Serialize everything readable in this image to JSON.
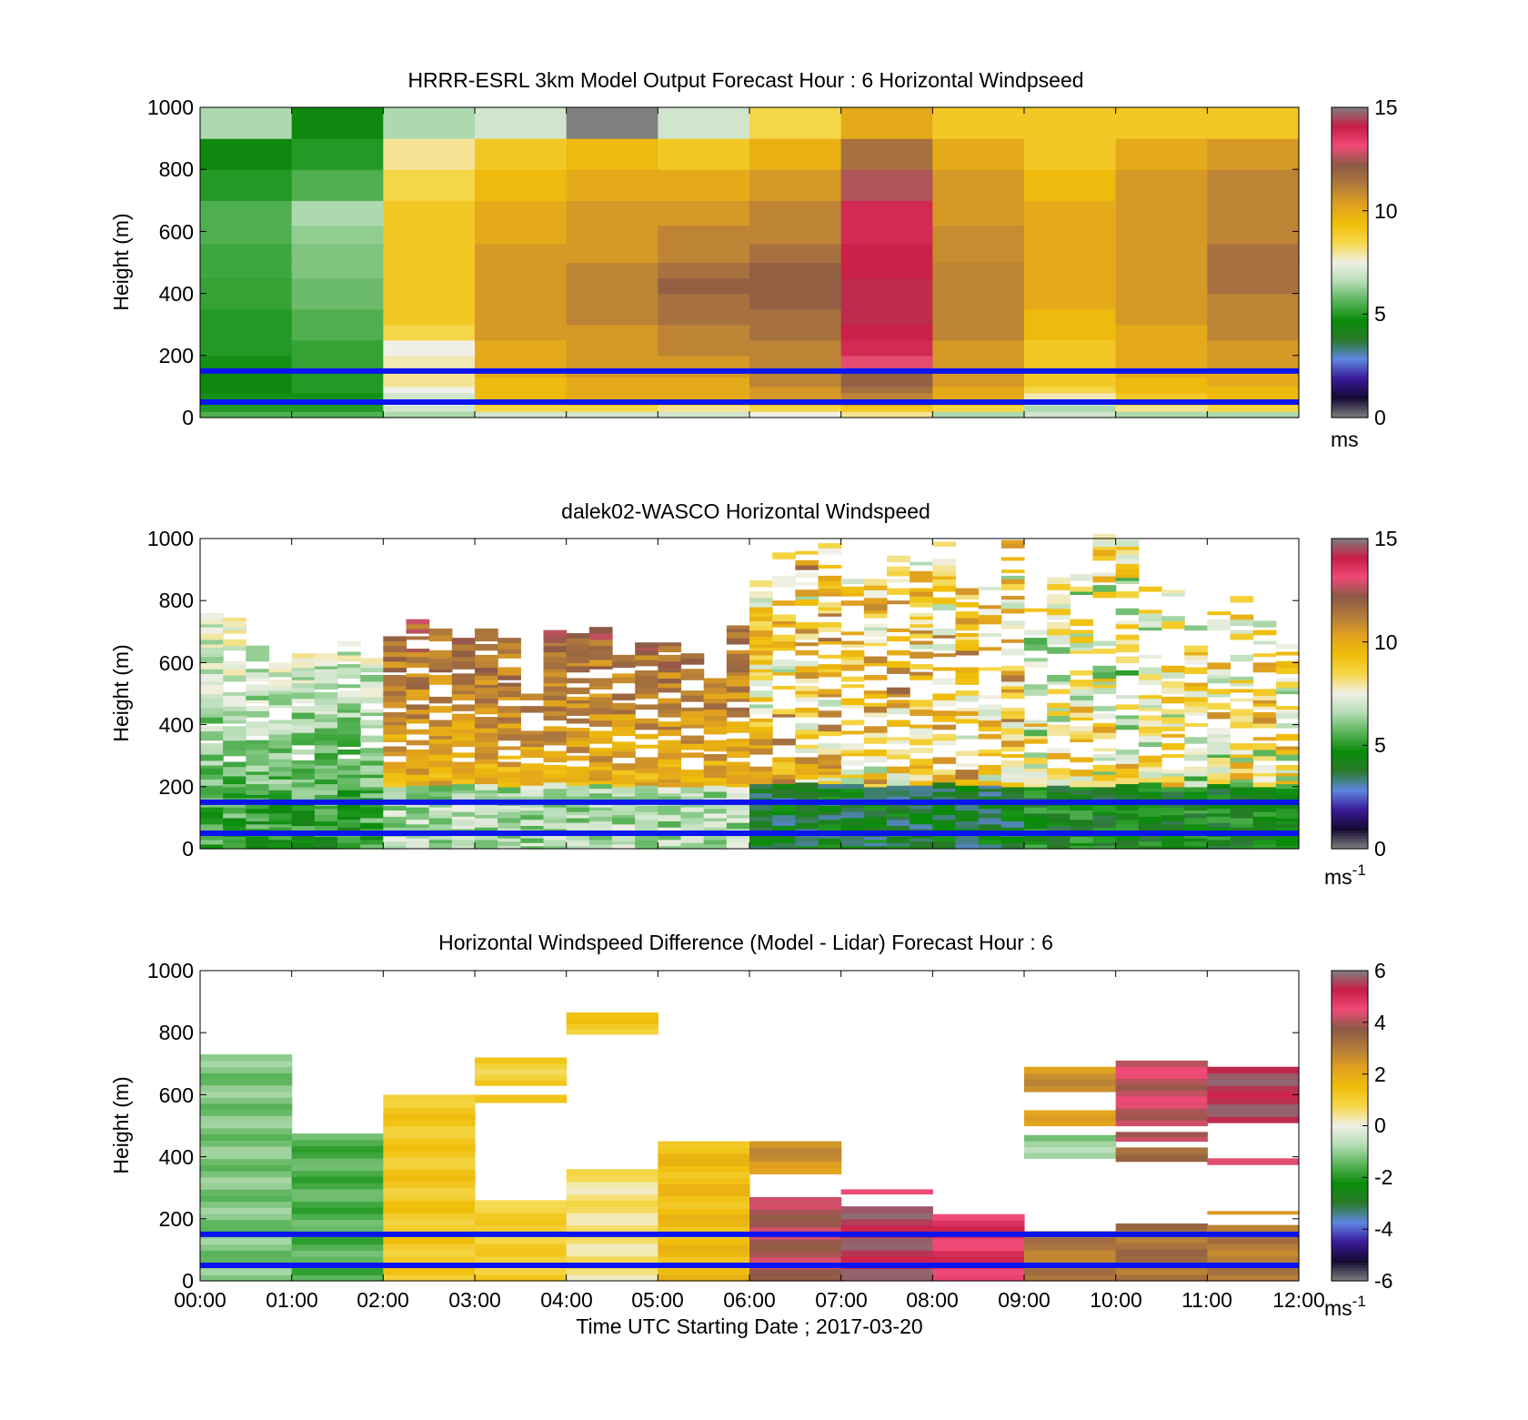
{
  "colors": {
    "background": "#ffffff",
    "reference_line": "#0a14f0",
    "speed_colormap": [
      "#7f7f7f",
      "#140a32",
      "#3a1a9a",
      "#5e86e0",
      "#2a7a2a",
      "#0a8c0a",
      "#5ab45a",
      "#b4dcb4",
      "#f0f0e6",
      "#f5d84a",
      "#f0be0a",
      "#e0a020",
      "#b07a3c",
      "#8c5a46",
      "#f04a78",
      "#c81e46",
      "#7f7f7f"
    ],
    "diff_colormap": [
      "#7f7f7f",
      "#140a32",
      "#3a1a9a",
      "#5e86e0",
      "#2a7a2a",
      "#0a8c0a",
      "#5ab45a",
      "#b4dcb4",
      "#f0f0e6",
      "#f5d84a",
      "#f0be0a",
      "#e0a020",
      "#b07a3c",
      "#8c5a46",
      "#f04a78",
      "#c81e46",
      "#7f7f7f"
    ]
  },
  "chart_data": [
    {
      "type": "heatmap",
      "title": "HRRR-ESRL 3km Model Output   Forecast Hour : 6 Horizontal Windpseed",
      "xlabel": "",
      "ylabel": "Height (m)",
      "xlim": [
        0,
        12
      ],
      "ylim": [
        0,
        1000
      ],
      "yticks": [
        "0",
        "200",
        "400",
        "600",
        "800",
        "1000"
      ],
      "colorbar": {
        "min": 0,
        "max": 15,
        "ticks": [
          "0",
          "5",
          "10",
          "15"
        ],
        "unit_label": "ms",
        "unit_exponent": ""
      },
      "reference_lines_m": [
        50,
        150
      ],
      "height_bins_m": [
        0,
        20,
        40,
        60,
        80,
        100,
        130,
        160,
        200,
        250,
        300,
        350,
        400,
        450,
        500,
        560,
        620,
        700,
        800,
        900,
        1000
      ],
      "values": [
        [
          5.5,
          5.5,
          6.5,
          7.0,
          7.0,
          7.0,
          7.5,
          8.0,
          6.5,
          7.0,
          6.5,
          6.5
        ],
        [
          5.0,
          5.0,
          7.0,
          8.5,
          8.5,
          8.0,
          8.5,
          9.0,
          8.5,
          6.5,
          8.0,
          8.5
        ],
        [
          4.8,
          4.8,
          7.5,
          9.0,
          9.5,
          9.0,
          10.0,
          10.5,
          9.5,
          7.0,
          8.5,
          9.0
        ],
        [
          4.8,
          4.8,
          7.0,
          9.5,
          10.0,
          10.0,
          10.5,
          11.0,
          10.0,
          7.8,
          9.0,
          9.5
        ],
        [
          4.5,
          5.0,
          7.5,
          9.5,
          10.0,
          10.0,
          10.5,
          11.5,
          10.0,
          8.5,
          9.5,
          9.5
        ],
        [
          4.5,
          5.0,
          8.0,
          9.5,
          10.0,
          10.0,
          11.0,
          12.0,
          10.5,
          9.0,
          9.5,
          10.0
        ],
        [
          4.5,
          5.0,
          8.0,
          10.0,
          10.5,
          10.5,
          11.0,
          12.0,
          10.5,
          9.0,
          10.0,
          10.0
        ],
        [
          4.8,
          5.2,
          7.8,
          10.0,
          10.5,
          10.5,
          11.0,
          13.0,
          10.5,
          9.0,
          10.0,
          10.5
        ],
        [
          5.0,
          5.2,
          7.5,
          10.0,
          10.5,
          11.0,
          11.0,
          13.8,
          10.5,
          9.0,
          10.0,
          10.5
        ],
        [
          5.0,
          5.5,
          8.5,
          10.5,
          10.5,
          11.0,
          11.5,
          14.0,
          11.0,
          9.5,
          10.0,
          11.0
        ],
        [
          5.0,
          5.5,
          9.0,
          10.5,
          11.0,
          11.5,
          11.5,
          14.2,
          11.0,
          9.5,
          10.5,
          11.0
        ],
        [
          5.2,
          5.8,
          9.0,
          10.5,
          11.0,
          11.5,
          12.0,
          14.2,
          11.0,
          10.0,
          10.5,
          11.0
        ],
        [
          5.2,
          5.8,
          9.0,
          10.5,
          11.0,
          12.0,
          12.0,
          14.2,
          11.0,
          10.0,
          10.5,
          11.5
        ],
        [
          5.3,
          6.0,
          9.0,
          10.5,
          11.0,
          11.5,
          12.0,
          14.0,
          11.0,
          10.0,
          10.5,
          11.5
        ],
        [
          5.3,
          6.0,
          9.0,
          10.5,
          10.5,
          11.0,
          11.5,
          14.0,
          10.8,
          10.0,
          10.5,
          11.5
        ],
        [
          5.5,
          6.2,
          9.0,
          10.0,
          10.5,
          11.0,
          11.0,
          13.8,
          10.8,
          10.0,
          10.5,
          11.0
        ],
        [
          5.5,
          6.5,
          9.0,
          10.0,
          10.5,
          10.5,
          11.0,
          13.8,
          10.5,
          10.0,
          10.5,
          11.0
        ],
        [
          5.0,
          5.5,
          8.5,
          9.5,
          10.0,
          10.0,
          10.5,
          12.5,
          10.5,
          9.5,
          10.5,
          11.0
        ],
        [
          4.5,
          5.0,
          8.0,
          9.0,
          9.5,
          9.0,
          9.8,
          11.5,
          10.0,
          9.0,
          10.0,
          10.5
        ],
        [
          6.5,
          4.5,
          6.5,
          7.0,
          0.0,
          7.0,
          8.5,
          10.0,
          9.0,
          9.0,
          9.0,
          9.0
        ]
      ]
    },
    {
      "type": "heatmap",
      "title": "dalek02-WASCO  Horizontal Windspeed",
      "xlabel": "",
      "ylabel": "Height (m)",
      "xlim": [
        0,
        12
      ],
      "ylim": [
        0,
        1000
      ],
      "yticks": [
        "0",
        "200",
        "400",
        "600",
        "800",
        "1000"
      ],
      "colorbar": {
        "min": 0,
        "max": 15,
        "ticks": [
          "0",
          "5",
          "10",
          "15"
        ],
        "unit_label": "ms",
        "unit_exponent": "-1"
      },
      "reference_lines_m": [
        50,
        150
      ],
      "segment_tops_m": [
        760,
        740,
        640,
        620,
        620,
        620,
        660,
        610,
        690,
        730,
        720,
        680,
        700,
        680,
        500,
        690,
        710,
        720,
        620,
        660,
        660,
        650,
        560,
        720,
        880,
        960,
        1000,
        1000,
        880,
        860,
        940,
        920,
        980,
        840,
        860,
        990,
        780,
        860,
        880,
        1000,
        980,
        860,
        880,
        720,
        760,
        800,
        720,
        680
      ]
    },
    {
      "type": "heatmap",
      "title": "Horizontal Windspeed Difference (Model - Lidar) Forecast Hour : 6",
      "xlabel": "Time UTC  Starting Date ; 2017-03-20",
      "ylabel": "Height (m)",
      "xlim": [
        0,
        12
      ],
      "ylim": [
        0,
        1000
      ],
      "xticks": [
        "00:00",
        "01:00",
        "02:00",
        "03:00",
        "04:00",
        "05:00",
        "06:00",
        "07:00",
        "08:00",
        "09:00",
        "10:00",
        "11:00",
        "12:00"
      ],
      "yticks": [
        "0",
        "200",
        "400",
        "600",
        "800",
        "1000"
      ],
      "colorbar": {
        "min": -6,
        "max": 6,
        "ticks": [
          "-6",
          "-4",
          "-2",
          "0",
          "2",
          "4",
          "6"
        ],
        "unit_label": "ms",
        "unit_exponent": "-1"
      },
      "reference_lines_m": [
        50,
        150
      ],
      "patches": [
        {
          "x0": 0,
          "x1": 1,
          "y0": 0,
          "y1": 730,
          "value": -1.2
        },
        {
          "x0": 1,
          "x1": 2,
          "y0": 0,
          "y1": 475,
          "value": -1.6
        },
        {
          "x0": 2,
          "x1": 3,
          "y0": 0,
          "y1": 600,
          "value": 1.2
        },
        {
          "x0": 3,
          "x1": 4,
          "y0": 0,
          "y1": 260,
          "value": 1.0
        },
        {
          "x0": 3,
          "x1": 4,
          "y0": 630,
          "y1": 720,
          "value": 1.0
        },
        {
          "x0": 3,
          "x1": 4,
          "y0": 575,
          "y1": 600,
          "value": 1.0
        },
        {
          "x0": 4,
          "x1": 5,
          "y0": 0,
          "y1": 360,
          "value": 0.5
        },
        {
          "x0": 4,
          "x1": 5,
          "y0": 795,
          "y1": 865,
          "value": 1.2
        },
        {
          "x0": 5,
          "x1": 6,
          "y0": 0,
          "y1": 450,
          "value": 1.5
        },
        {
          "x0": 6,
          "x1": 7,
          "y0": 0,
          "y1": 270,
          "value": 4.0
        },
        {
          "x0": 6,
          "x1": 7,
          "y0": 345,
          "y1": 450,
          "value": 2.5
        },
        {
          "x0": 7,
          "x1": 8,
          "y0": 0,
          "y1": 240,
          "value": 5.5
        },
        {
          "x0": 7,
          "x1": 8,
          "y0": 280,
          "y1": 295,
          "value": 4.2
        },
        {
          "x0": 8,
          "x1": 9,
          "y0": 0,
          "y1": 215,
          "value": 4.8
        },
        {
          "x0": 9,
          "x1": 10,
          "y0": 0,
          "y1": 160,
          "value": 3.0
        },
        {
          "x0": 9,
          "x1": 10,
          "y0": 395,
          "y1": 470,
          "value": -1.0
        },
        {
          "x0": 9,
          "x1": 10,
          "y0": 500,
          "y1": 550,
          "value": 2.0
        },
        {
          "x0": 9,
          "x1": 10,
          "y0": 610,
          "y1": 690,
          "value": 2.5
        },
        {
          "x0": 10,
          "x1": 11,
          "y0": 0,
          "y1": 185,
          "value": 3.2
        },
        {
          "x0": 10,
          "x1": 11,
          "y0": 385,
          "y1": 430,
          "value": 3.5
        },
        {
          "x0": 10,
          "x1": 11,
          "y0": 450,
          "y1": 480,
          "value": 4.2
        },
        {
          "x0": 10,
          "x1": 11,
          "y0": 500,
          "y1": 710,
          "value": 4.2
        },
        {
          "x0": 11,
          "x1": 12,
          "y0": 0,
          "y1": 180,
          "value": 3.0
        },
        {
          "x0": 11,
          "x1": 12,
          "y0": 215,
          "y1": 225,
          "value": 2.5
        },
        {
          "x0": 11,
          "x1": 12,
          "y0": 375,
          "y1": 395,
          "value": 4.5
        },
        {
          "x0": 11,
          "x1": 12,
          "y0": 510,
          "y1": 690,
          "value": 5.5
        }
      ]
    }
  ]
}
